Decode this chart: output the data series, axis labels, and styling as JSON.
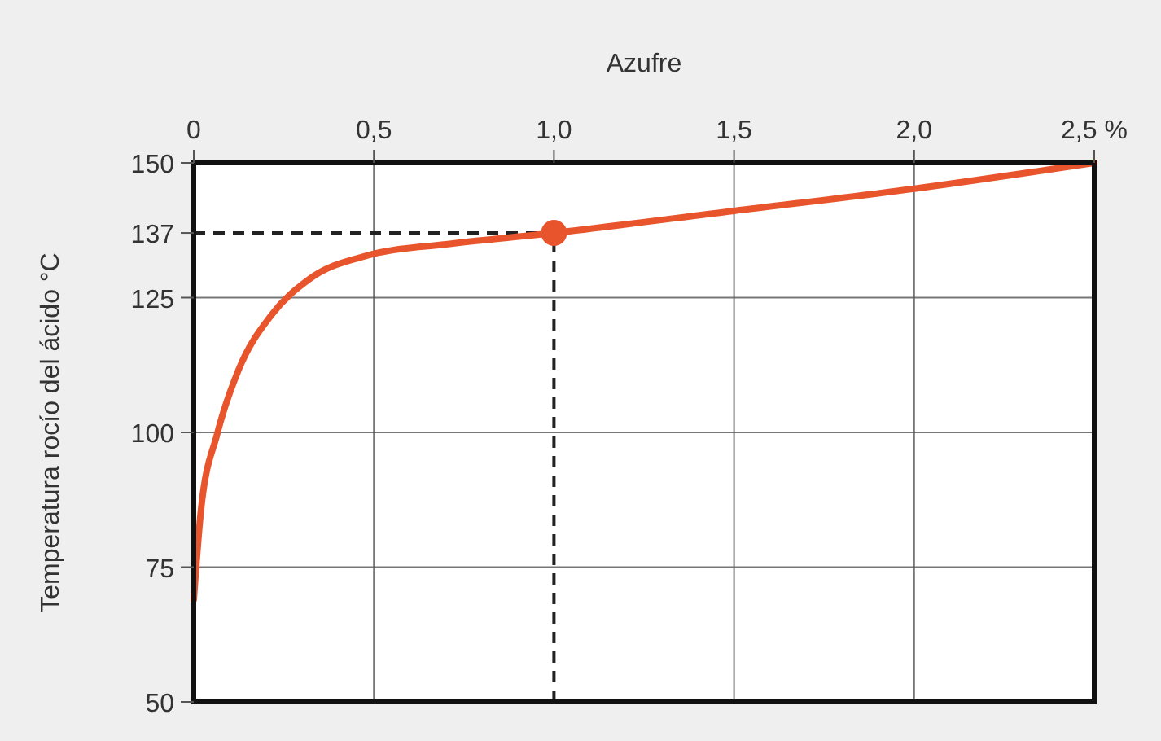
{
  "chart_data": {
    "type": "line",
    "xlabel": "Azufre",
    "ylabel": "Temperatura rocío del ácido °C",
    "x": [
      0,
      0.02,
      0.065,
      0.125,
      0.216,
      0.32,
      0.487,
      0.7,
      1.0,
      1.5,
      2.0,
      2.5
    ],
    "series": [
      {
        "color": "#e8552d",
        "values": [
          69,
          85.6,
          99.7,
          111.7,
          121.8,
          128.4,
          132.9,
          134.9,
          137,
          141.1,
          145.2,
          150
        ]
      },
      {
        "type": "scatter",
        "color": "#e8552d",
        "x": [
          1.0
        ],
        "values": [
          137
        ],
        "marker": "circle"
      }
    ],
    "xlim": [
      0,
      2.5
    ],
    "ylim": [
      50,
      150
    ],
    "xticks": [
      0,
      {
        "value": 0.5,
        "label": "0,5"
      },
      {
        "value": 1,
        "label": "1,0"
      },
      {
        "value": 1.5,
        "label": "1,5"
      },
      {
        "value": 2,
        "label": "2,0"
      },
      {
        "value": 2.5,
        "label": "2,5 %"
      }
    ],
    "yticks": [
      50,
      75,
      100,
      125,
      137,
      150
    ],
    "grid": true,
    "ref_lines": [
      {
        "axis": "x",
        "value": 1.0,
        "label": null,
        "line_style": "dashed"
      },
      {
        "axis": "y",
        "value": 137,
        "label": null,
        "line_style": "dashed"
      }
    ]
  }
}
